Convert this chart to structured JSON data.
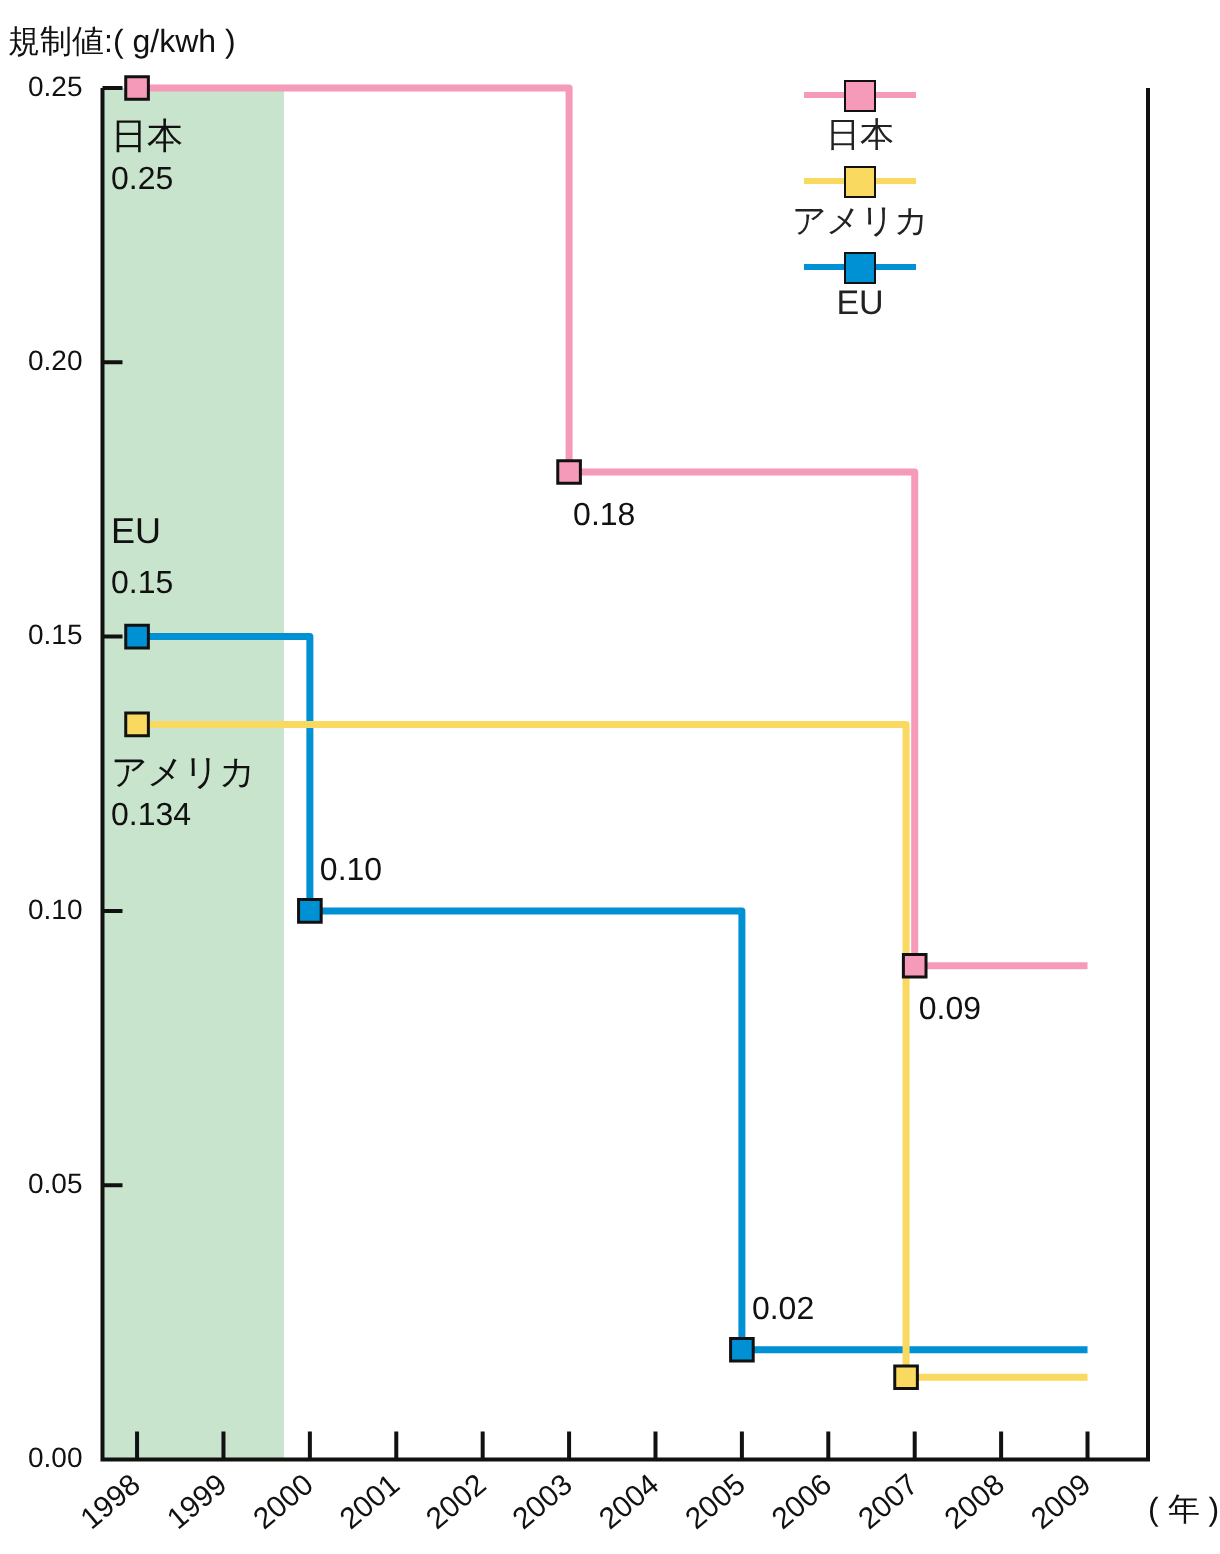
{
  "chart_data": {
    "type": "step",
    "ylabel": "規制値:( g/kwh )",
    "xlabel": "( 年 )",
    "xlim": [
      1997.6,
      2009.7
    ],
    "xticks": [
      1998,
      1999,
      2000,
      2001,
      2002,
      2003,
      2004,
      2005,
      2006,
      2007,
      2008,
      2009
    ],
    "ylim": [
      0,
      0.25
    ],
    "yticks": [
      {
        "value": 0,
        "label": "0.00"
      },
      {
        "value": 0.05,
        "label": "0.05"
      },
      {
        "value": 0.1,
        "label": "0.10"
      },
      {
        "value": 0.15,
        "label": "0.15"
      },
      {
        "value": 0.2,
        "label": "0.20"
      },
      0.25
    ],
    "series": [
      {
        "name": "日本",
        "color": "#f59ab8",
        "x": [
          1998,
          2003,
          2007,
          2009
        ],
        "values": [
          0.25,
          0.18,
          0.09,
          0.09
        ],
        "value_labels": [
          "0.25",
          "0.18",
          "0.09",
          null
        ]
      },
      {
        "name": "アメリカ",
        "color": "#f9d95f",
        "x": [
          1998,
          2006.9,
          2009
        ],
        "values": [
          0.134,
          0.015,
          0.015
        ],
        "value_labels": [
          "0.134",
          null,
          null
        ]
      },
      {
        "name": "EU",
        "color": "#0090d4",
        "x": [
          1998,
          2000,
          2005,
          2009
        ],
        "values": [
          0.15,
          0.1,
          0.02,
          0.02
        ],
        "value_labels": [
          "0.15",
          "0.10",
          "0.02",
          null
        ]
      }
    ],
    "bands": [
      {
        "axis": "x",
        "from": 1997.6,
        "to": 1999.7,
        "color": "#c8e4cc"
      }
    ],
    "marker": "square",
    "legend": "top right",
    "grid": false
  }
}
